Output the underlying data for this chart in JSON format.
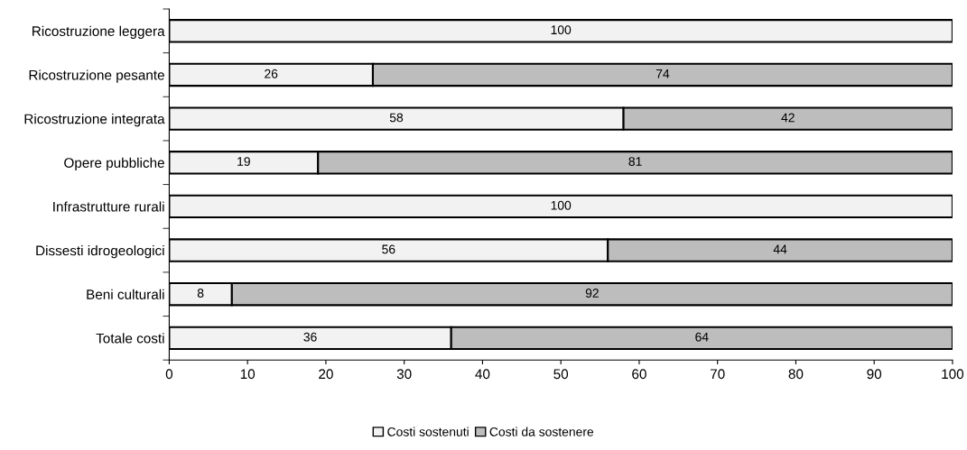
{
  "chart_data": {
    "type": "bar",
    "orientation": "horizontal",
    "stacked": true,
    "categories": [
      "Ricostruzione leggera",
      "Ricostruzione pesante",
      "Ricostruzione integrata",
      "Opere pubbliche",
      "Infrastrutture rurali",
      "Dissesti idrogeologici",
      "Beni culturali",
      "Totale costi"
    ],
    "series": [
      {
        "name": "Costi sostenuti",
        "color": "#f2f2f2",
        "values": [
          100,
          26,
          58,
          19,
          100,
          56,
          8,
          36
        ],
        "value_labels": [
          "100",
          "26",
          "58",
          "19",
          "100",
          "56",
          "8",
          "36"
        ]
      },
      {
        "name": "Costi da sostenere",
        "color": "#bdbdbd",
        "values": [
          null,
          74,
          42,
          81,
          null,
          44,
          92,
          64
        ],
        "value_labels": [
          null,
          "74",
          "42",
          "81",
          null,
          "44",
          "92",
          "64"
        ]
      }
    ],
    "xlim": [
      0,
      100
    ],
    "xticks": [
      0,
      10,
      20,
      30,
      40,
      50,
      60,
      70,
      80,
      90,
      100
    ],
    "grid": false,
    "legend": "bottom"
  }
}
